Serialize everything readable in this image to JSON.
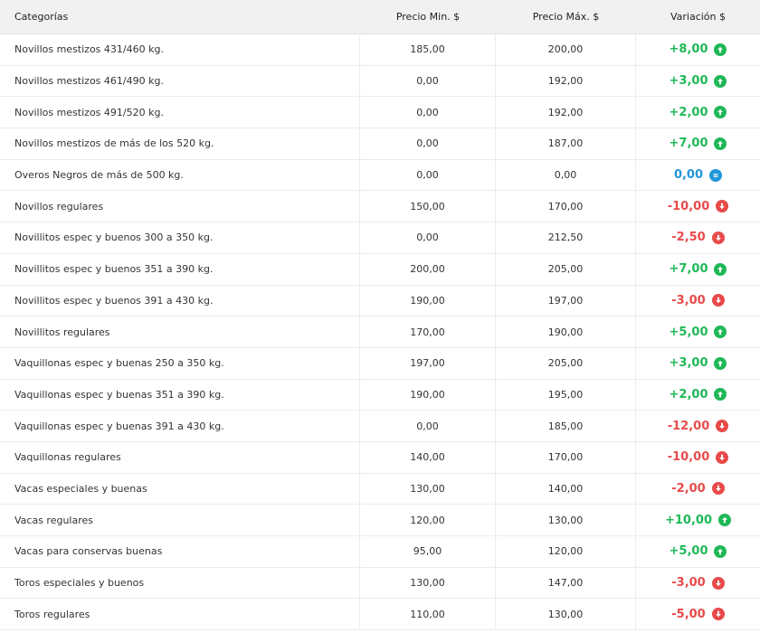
{
  "header": {
    "categoria": "Categorías",
    "min": "Precio Min. $",
    "max": "Precio Máx. $",
    "variacion": "Variación $"
  },
  "colors": {
    "up": "#1fb857",
    "down": "#e84a4a",
    "equal": "#2196d8"
  },
  "rows": [
    {
      "name": "Novillos mestizos 431/460 kg.",
      "min": "185,00",
      "max": "200,00",
      "var": "+8,00",
      "trend": "up"
    },
    {
      "name": "Novillos mestizos 461/490 kg.",
      "min": "0,00",
      "max": "192,00",
      "var": "+3,00",
      "trend": "up"
    },
    {
      "name": "Novillos mestizos 491/520 kg.",
      "min": "0,00",
      "max": "192,00",
      "var": "+2,00",
      "trend": "up"
    },
    {
      "name": "Novillos mestizos de más de los 520 kg.",
      "min": "0,00",
      "max": "187,00",
      "var": "+7,00",
      "trend": "up"
    },
    {
      "name": "Overos Negros de más de 500 kg.",
      "min": "0,00",
      "max": "0,00",
      "var": "0,00",
      "trend": "equal"
    },
    {
      "name": "Novillos regulares",
      "min": "150,00",
      "max": "170,00",
      "var": "-10,00",
      "trend": "down"
    },
    {
      "name": "Novillitos espec y buenos 300 a 350 kg.",
      "min": "0,00",
      "max": "212,50",
      "var": "-2,50",
      "trend": "down"
    },
    {
      "name": "Novillitos espec y buenos 351 a 390 kg.",
      "min": "200,00",
      "max": "205,00",
      "var": "+7,00",
      "trend": "up"
    },
    {
      "name": "Novillitos espec y buenos 391 a 430 kg.",
      "min": "190,00",
      "max": "197,00",
      "var": "-3,00",
      "trend": "down"
    },
    {
      "name": "Novillitos regulares",
      "min": "170,00",
      "max": "190,00",
      "var": "+5,00",
      "trend": "up"
    },
    {
      "name": "Vaquillonas espec y buenas 250 a 350 kg.",
      "min": "197,00",
      "max": "205,00",
      "var": "+3,00",
      "trend": "up"
    },
    {
      "name": "Vaquillonas espec y buenas 351 a 390 kg.",
      "min": "190,00",
      "max": "195,00",
      "var": "+2,00",
      "trend": "up"
    },
    {
      "name": "Vaquillonas espec y buenas 391 a 430 kg.",
      "min": "0,00",
      "max": "185,00",
      "var": "-12,00",
      "trend": "down"
    },
    {
      "name": "Vaquillonas regulares",
      "min": "140,00",
      "max": "170,00",
      "var": "-10,00",
      "trend": "down"
    },
    {
      "name": "Vacas especiales y buenas",
      "min": "130,00",
      "max": "140,00",
      "var": "-2,00",
      "trend": "down"
    },
    {
      "name": "Vacas regulares",
      "min": "120,00",
      "max": "130,00",
      "var": "+10,00",
      "trend": "up"
    },
    {
      "name": "Vacas para conservas buenas",
      "min": "95,00",
      "max": "120,00",
      "var": "+5,00",
      "trend": "up"
    },
    {
      "name": "Toros especiales y buenos",
      "min": "130,00",
      "max": "147,00",
      "var": "-3,00",
      "trend": "down"
    },
    {
      "name": "Toros regulares",
      "min": "110,00",
      "max": "130,00",
      "var": "-5,00",
      "trend": "down"
    }
  ]
}
